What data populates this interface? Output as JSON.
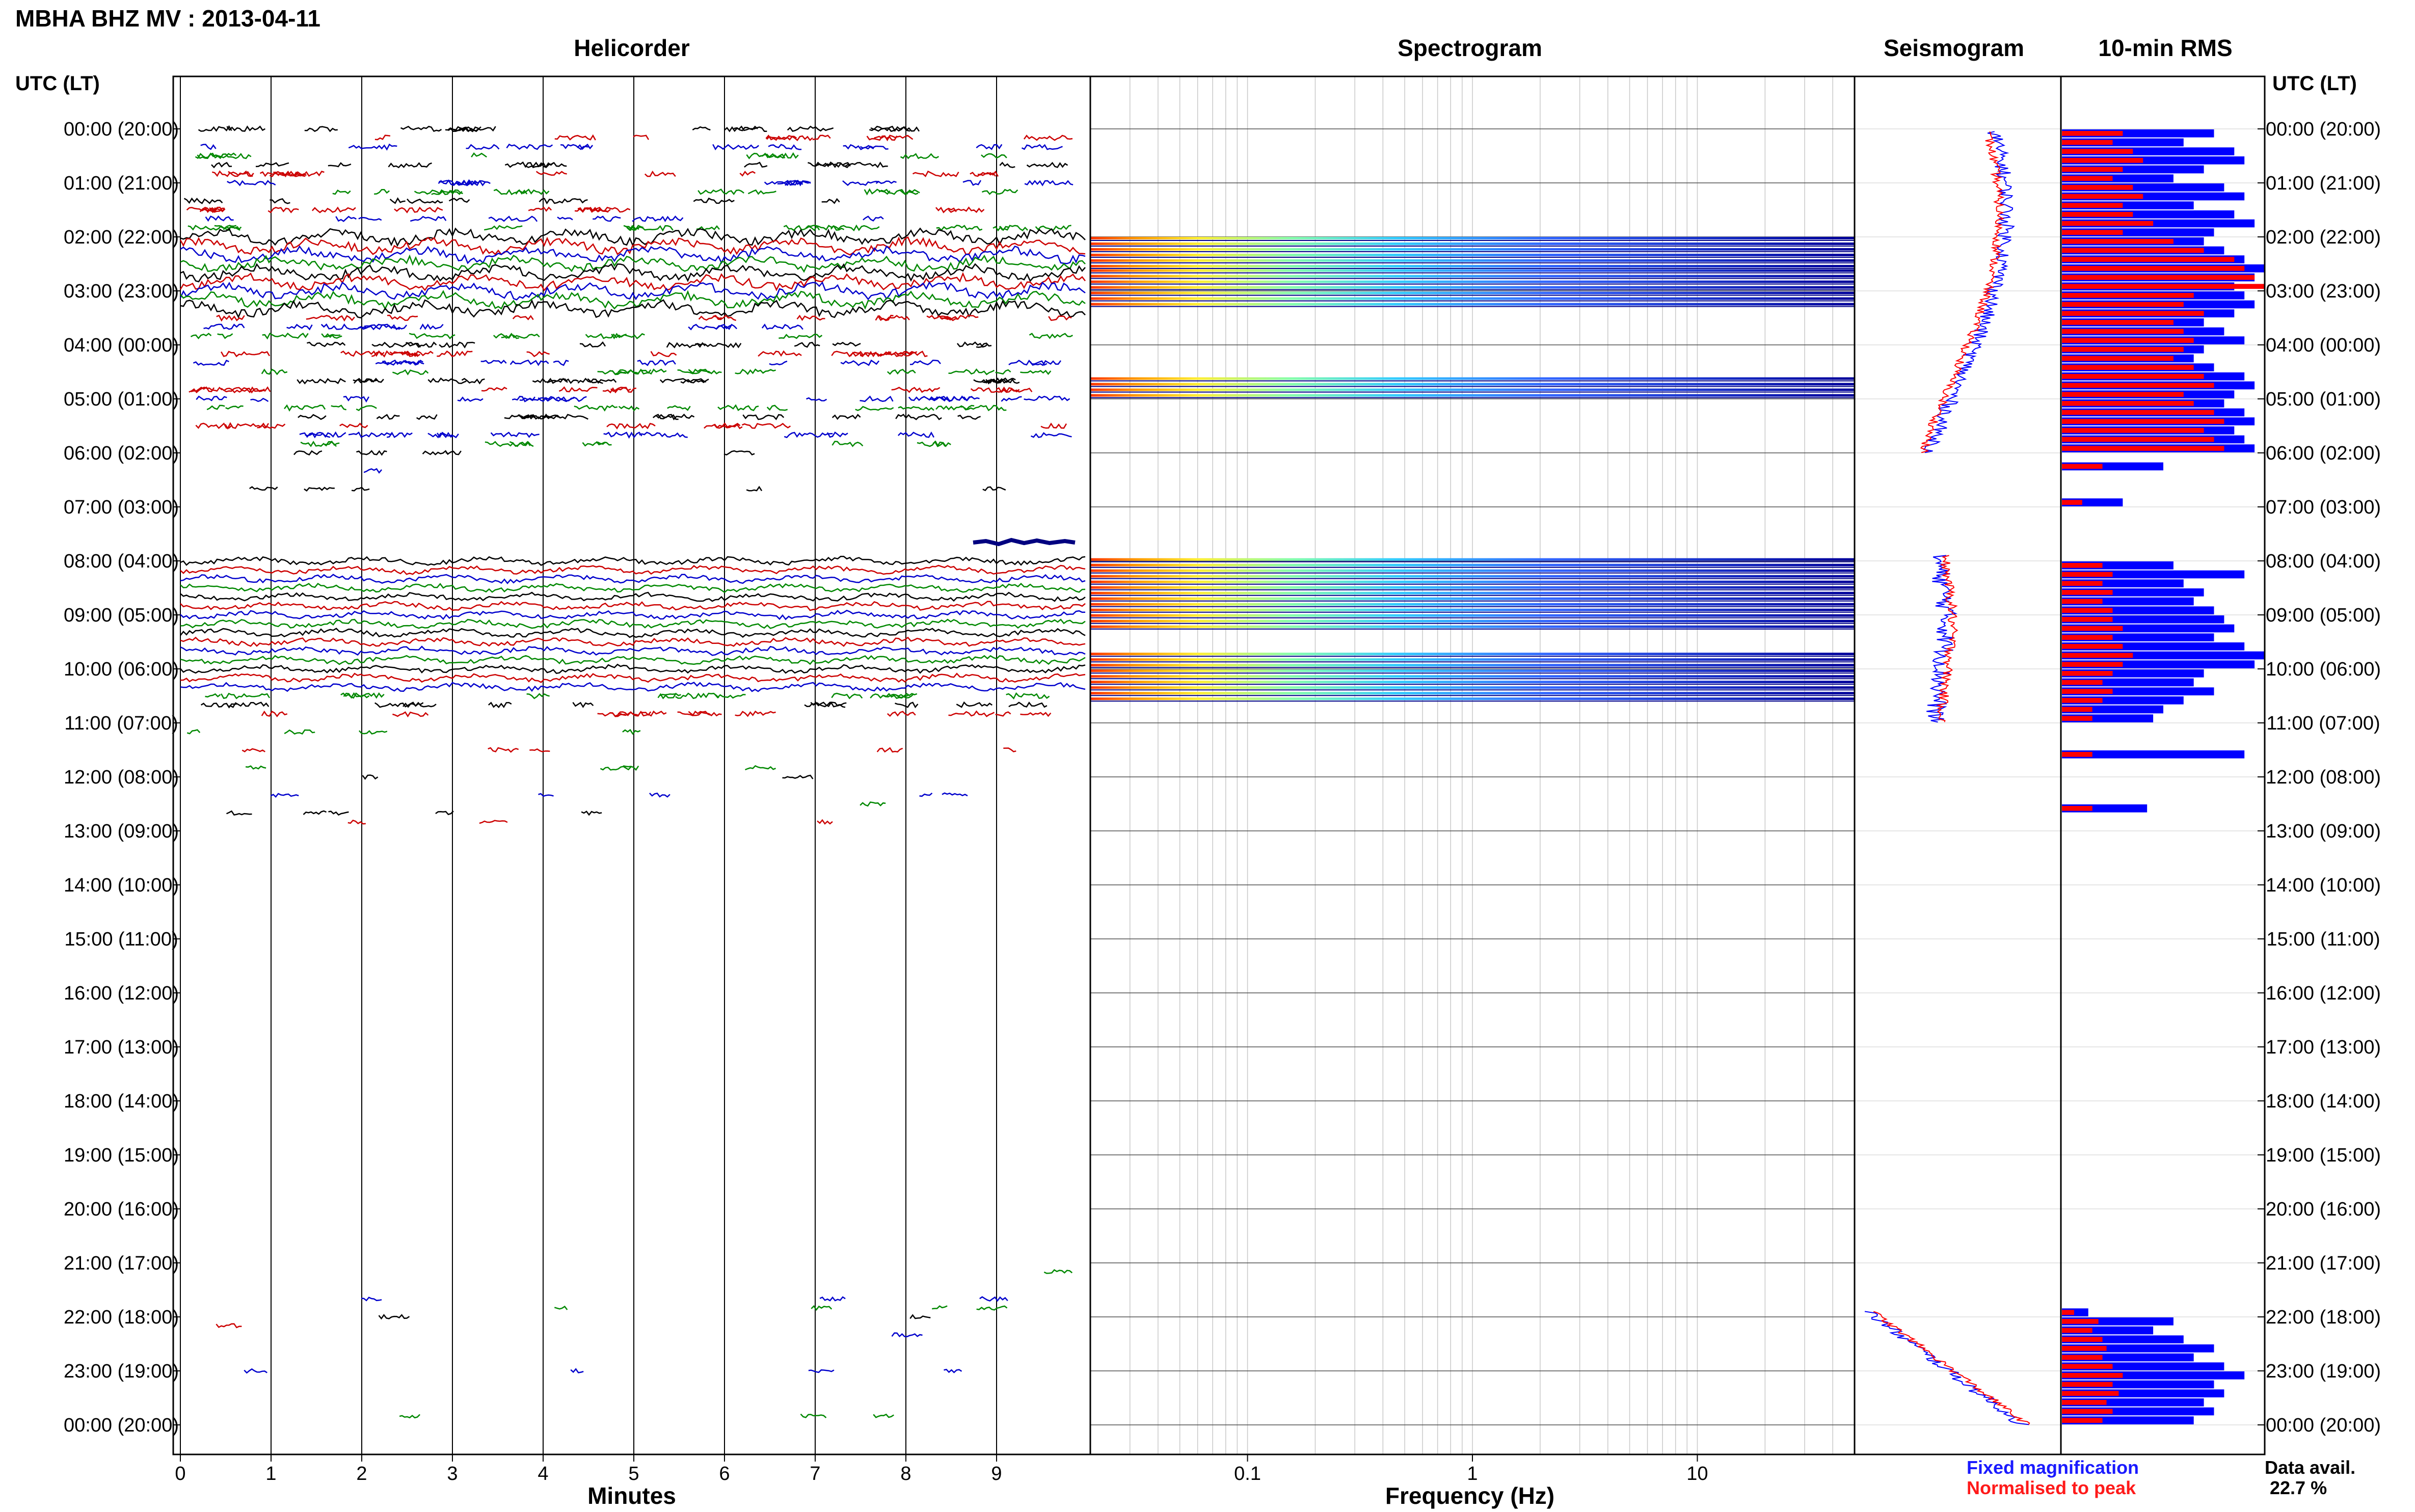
{
  "header": {
    "title": "MBHA BHZ MV : 2013-04-11",
    "utc_label_left": "UTC (LT)",
    "utc_label_right": "UTC (LT)"
  },
  "panels": {
    "helicorder": "Helicorder",
    "spectrogram": "Spectrogram",
    "seismogram": "Seismogram",
    "rms": "10-min RMS"
  },
  "axes": {
    "minutes_label": "Minutes",
    "frequency_label": "Frequency (Hz)",
    "minute_ticks": [
      "0",
      "1",
      "2",
      "3",
      "4",
      "5",
      "6",
      "7",
      "8",
      "9"
    ],
    "frequency_ticks": [
      "0.1",
      "1",
      "10"
    ]
  },
  "time_rows": [
    "00:00 (20:00)",
    "01:00 (21:00)",
    "02:00 (22:00)",
    "03:00 (23:00)",
    "04:00 (00:00)",
    "05:00 (01:00)",
    "06:00 (02:00)",
    "07:00 (03:00)",
    "08:00 (04:00)",
    "09:00 (05:00)",
    "10:00 (06:00)",
    "11:00 (07:00)",
    "12:00 (08:00)",
    "13:00 (09:00)",
    "14:00 (10:00)",
    "15:00 (11:00)",
    "16:00 (12:00)",
    "17:00 (13:00)",
    "18:00 (14:00)",
    "19:00 (15:00)",
    "20:00 (16:00)",
    "21:00 (17:00)",
    "22:00 (18:00)",
    "23:00 (19:00)",
    "00:00 (20:00)"
  ],
  "legend": {
    "fixed": "Fixed magnification",
    "normalised": "Normalised to peak"
  },
  "data_availability": {
    "label": "Data avail.",
    "value": "22.7 %"
  },
  "colors": {
    "fixed": "#0000ff",
    "normalised": "#ff0000",
    "trace_colors": [
      "#000000",
      "#cc0000",
      "#0000cc",
      "#008800"
    ]
  },
  "chart_data": {
    "type": "heatmap",
    "station": "MBHA BHZ MV",
    "date": "2013-04-11",
    "helicorder": {
      "x_range_minutes": [
        0,
        10
      ],
      "rows_per_hour": 6,
      "active_hours": [
        [
          0,
          6
        ],
        [
          8,
          11
        ]
      ],
      "sparse_hours": [
        6,
        11,
        12,
        21,
        22,
        23
      ]
    },
    "spectrogram": {
      "frequency_range_hz": [
        0.02,
        50
      ],
      "scale": "log",
      "active_segments_hours": [
        [
          2.0,
          2.6
        ],
        [
          2.6,
          3.3
        ],
        [
          4.6,
          4.95
        ],
        [
          7.95,
          9.2
        ],
        [
          9.7,
          10.6
        ]
      ]
    },
    "rms_10min": {
      "scale": "relative",
      "slots_per_hour": 6,
      "fixed": [
        0.75,
        0.6,
        0.85,
        0.9,
        0.7,
        0.55,
        0.8,
        0.9,
        0.65,
        0.85,
        0.95,
        0.75,
        0.7,
        0.8,
        0.9,
        1.0,
        0.95,
        0.85,
        0.9,
        0.95,
        0.85,
        0.7,
        0.8,
        0.9,
        0.7,
        0.65,
        0.75,
        0.9,
        0.95,
        0.85,
        0.8,
        0.9,
        0.95,
        0.85,
        0.9,
        0.95,
        0.0,
        0.5,
        0.0,
        0.0,
        0.0,
        0.3,
        0.0,
        0.0,
        0.0,
        0.0,
        0.0,
        0.0,
        0.55,
        0.9,
        0.6,
        0.7,
        0.65,
        0.75,
        0.8,
        0.85,
        0.75,
        0.9,
        1.0,
        0.95,
        0.7,
        0.65,
        0.75,
        0.6,
        0.5,
        0.45,
        0.0,
        0.0,
        0.0,
        0.9,
        0.0,
        0.0,
        0.0,
        0.0,
        0.0,
        0.42,
        0.0,
        0.0,
        0.0,
        0.0,
        0.0,
        0.0,
        0.0,
        0.0,
        0.0,
        0.0,
        0.0,
        0.0,
        0.0,
        0.0,
        0.0,
        0.0,
        0.0,
        0.0,
        0.0,
        0.0,
        0.0,
        0.0,
        0.0,
        0.0,
        0.0,
        0.0,
        0.0,
        0.0,
        0.0,
        0.0,
        0.0,
        0.0,
        0.0,
        0.0,
        0.0,
        0.0,
        0.0,
        0.0,
        0.0,
        0.0,
        0.0,
        0.0,
        0.0,
        0.0,
        0.0,
        0.0,
        0.0,
        0.0,
        0.0,
        0.0,
        0.0,
        0.0,
        0.0,
        0.0,
        0.0,
        0.13,
        0.55,
        0.45,
        0.6,
        0.75,
        0.65,
        0.8,
        0.9,
        0.75,
        0.8,
        0.7,
        0.75,
        0.65
      ],
      "normalised": [
        0.3,
        0.25,
        0.35,
        0.4,
        0.3,
        0.25,
        0.35,
        0.4,
        0.3,
        0.35,
        0.45,
        0.3,
        0.55,
        0.7,
        0.85,
        0.9,
        0.95,
        1.0,
        0.65,
        0.6,
        0.7,
        0.55,
        0.6,
        0.65,
        0.6,
        0.55,
        0.65,
        0.7,
        0.75,
        0.6,
        0.65,
        0.75,
        0.8,
        0.7,
        0.75,
        0.8,
        0.0,
        0.2,
        0.0,
        0.0,
        0.0,
        0.1,
        0.0,
        0.0,
        0.0,
        0.0,
        0.0,
        0.0,
        0.2,
        0.25,
        0.2,
        0.25,
        0.2,
        0.25,
        0.25,
        0.3,
        0.25,
        0.3,
        0.35,
        0.3,
        0.25,
        0.2,
        0.25,
        0.2,
        0.15,
        0.15,
        0.0,
        0.0,
        0.0,
        0.15,
        0.0,
        0.0,
        0.0,
        0.0,
        0.0,
        0.15,
        0.0,
        0.0,
        0.0,
        0.0,
        0.0,
        0.0,
        0.0,
        0.0,
        0.0,
        0.0,
        0.0,
        0.0,
        0.0,
        0.0,
        0.0,
        0.0,
        0.0,
        0.0,
        0.0,
        0.0,
        0.0,
        0.0,
        0.0,
        0.0,
        0.0,
        0.0,
        0.0,
        0.0,
        0.0,
        0.0,
        0.0,
        0.0,
        0.0,
        0.0,
        0.0,
        0.0,
        0.0,
        0.0,
        0.0,
        0.0,
        0.0,
        0.0,
        0.0,
        0.0,
        0.0,
        0.0,
        0.0,
        0.0,
        0.0,
        0.0,
        0.0,
        0.0,
        0.0,
        0.0,
        0.0,
        0.06,
        0.18,
        0.15,
        0.2,
        0.22,
        0.2,
        0.25,
        0.3,
        0.25,
        0.28,
        0.22,
        0.25,
        0.2
      ]
    }
  }
}
